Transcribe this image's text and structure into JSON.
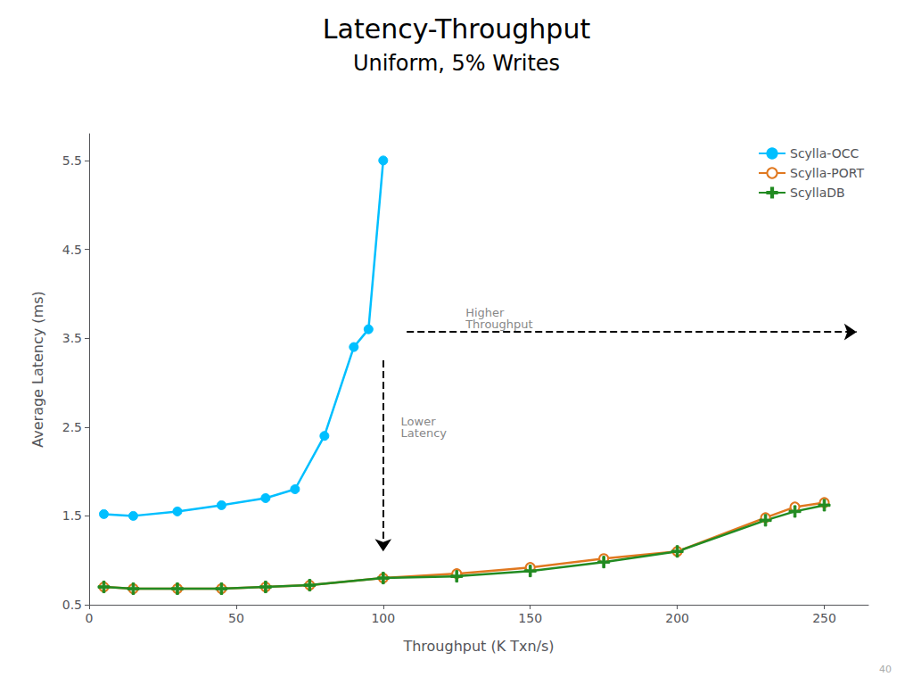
{
  "chart_data": {
    "type": "line",
    "title": "Latency-Throughput",
    "subtitle": "Uniform, 5% Writes",
    "xlabel": "Throughput (K Txn/s)",
    "ylabel": "Average Latency (ms)",
    "xlim": [
      0,
      265
    ],
    "ylim": [
      0.5,
      5.8
    ],
    "xticks": [
      0,
      50,
      100,
      150,
      200,
      250
    ],
    "yticks": [
      0.5,
      1.5,
      2.5,
      3.5,
      4.5,
      5.5
    ],
    "grid": false,
    "legend": "upper right",
    "series": [
      {
        "name": "Scylla-OCC",
        "color": "#00BFFF",
        "marker": "circle",
        "x": [
          5,
          15,
          30,
          45,
          60,
          70,
          80,
          90,
          95,
          100
        ],
        "values": [
          1.52,
          1.5,
          1.55,
          1.62,
          1.7,
          1.8,
          2.4,
          3.4,
          3.6,
          5.5
        ]
      },
      {
        "name": "Scylla-PORT",
        "color": "#E07820",
        "marker": "open_circle",
        "x": [
          5,
          15,
          30,
          45,
          60,
          75,
          100,
          125,
          150,
          175,
          200,
          230,
          240,
          250
        ],
        "values": [
          0.7,
          0.68,
          0.68,
          0.68,
          0.7,
          0.72,
          0.8,
          0.85,
          0.92,
          1.02,
          1.1,
          1.48,
          1.6,
          1.65
        ]
      },
      {
        "name": "ScyllaDB",
        "color": "#228B22",
        "marker": "plus",
        "x": [
          5,
          15,
          30,
          45,
          60,
          75,
          100,
          125,
          150,
          175,
          200,
          230,
          240,
          250
        ],
        "values": [
          0.7,
          0.68,
          0.68,
          0.68,
          0.7,
          0.72,
          0.8,
          0.82,
          0.88,
          0.98,
          1.1,
          1.45,
          1.55,
          1.62
        ]
      }
    ],
    "arrows": [
      {
        "from": [
          108,
          3.57
        ],
        "to": [
          261,
          3.57
        ]
      },
      {
        "from": [
          100,
          3.25
        ],
        "to": [
          100,
          1.1
        ]
      }
    ],
    "annotations": [
      {
        "text": "Higher\nThroughput",
        "x": 128,
        "y": 3.72
      },
      {
        "text": "Lower\nLatency",
        "x": 106,
        "y": 2.5
      }
    ],
    "page_number": "40"
  }
}
